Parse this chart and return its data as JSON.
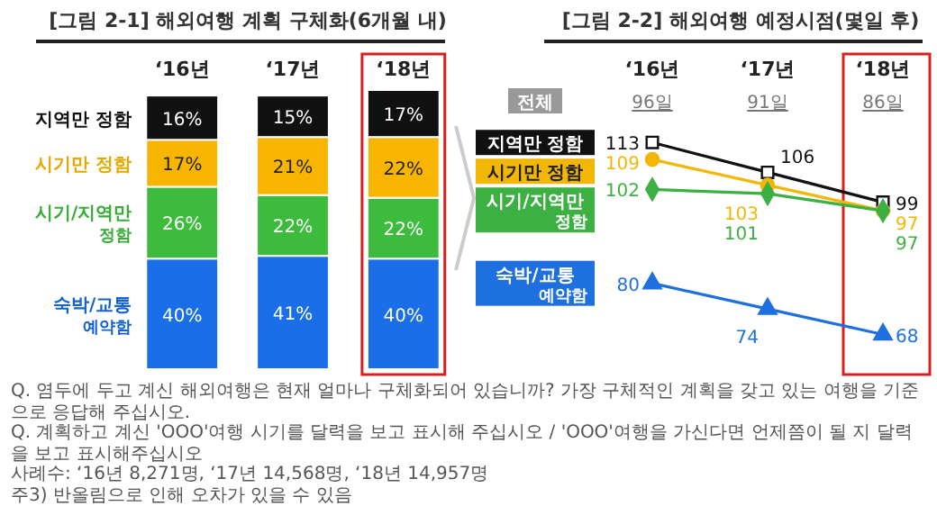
{
  "chart_data": [
    {
      "type": "bar",
      "stacked": true,
      "title": "[그림 2-1] 해외여행 계획 구체화(6개월 내)",
      "categories": [
        "‘16년",
        "‘17년",
        "‘18년"
      ],
      "series": [
        {
          "name": "숙박/교통 예약함",
          "color": "#1a6fe8",
          "values": [
            40,
            41,
            40
          ],
          "value_labels": [
            "40%",
            "41%",
            "40%"
          ]
        },
        {
          "name": "시기/지역만 정함",
          "color": "#3dbb3d",
          "values": [
            26,
            22,
            22
          ],
          "value_labels": [
            "26%",
            "22%",
            "22%"
          ]
        },
        {
          "name": "시기만 정함",
          "color": "#f7b500",
          "values": [
            17,
            21,
            22
          ],
          "value_labels": [
            "17%",
            "21%",
            "22%"
          ]
        },
        {
          "name": "지역만 정함",
          "color": "#111111",
          "values": [
            16,
            15,
            17
          ],
          "value_labels": [
            "16%",
            "15%",
            "17%"
          ]
        }
      ],
      "annotations": [
        "Q. 염두에 두고 계신 해외여행은 현재 얼마나 구체화되어 있습니까? 가장 구체적인 계획을 갖고 있는 여행을 기준으로 응답해 주십시오.",
        "Q. 계획하고 계신 'OOO'여행 시기를 달력을 보고 표시해 주십시오 / 'OOO'여행을 가신다면 언제쯤이 될 지 달력을 보고 표시해주십시오",
        "사례수: ‘16년 8,271명, ‘17년 14,568명, ‘18년 14,957명",
        "주3) 반올림으로 인해 오차가 있을 수 있음"
      ]
    },
    {
      "type": "line",
      "title": "[그림 2-2] 해외여행 예정시점(몇일 후)",
      "categories": [
        "‘16년",
        "‘17년",
        "‘18년"
      ],
      "data_labels": true,
      "series": [
        {
          "name": "지역만 정함",
          "color": "#111111",
          "marker": "square",
          "values": [
            113,
            106,
            99
          ]
        },
        {
          "name": "시기만 정함",
          "color": "#f2b705",
          "marker": "circle",
          "values": [
            109,
            103,
            97
          ]
        },
        {
          "name": "시기/지역만 정함",
          "color": "#3cb043",
          "marker": "diamond",
          "values": [
            102,
            101,
            97
          ]
        },
        {
          "name": "숙박/교통 예약함",
          "color": "#1e6fe0",
          "marker": "triangle",
          "values": [
            80,
            74,
            68
          ]
        }
      ],
      "annotations": [
        "전체",
        "96일",
        "91일",
        "86일"
      ]
    }
  ]
}
